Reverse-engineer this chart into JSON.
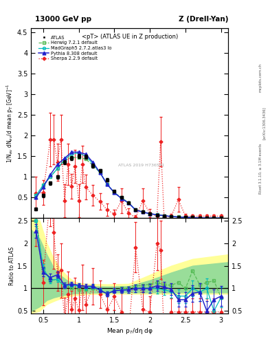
{
  "title_top_left": "13000 GeV pp",
  "title_top_right": "Z (Drell-Yan)",
  "panel_title": "<pT> (ATLAS UE in Z production)",
  "ylabel_main": "1/N$_{ev}$ dN$_{ev}$/d mean p$_{T}$ [GeV]$^{-1}$",
  "ylabel_ratio": "Ratio to ATLAS",
  "xlabel": "Mean p$_{T}$/dη dφ",
  "right_text_top": "mcplots.cern.ch",
  "right_text_mid": "[arXiv:1306.3436]",
  "right_text_bot": "Rivet 3.1.10, ≥ 3.1M events",
  "ylim_main": [
    0,
    4.6
  ],
  "ylim_ratio": [
    0.45,
    2.55
  ],
  "xlim": [
    0.33,
    3.1
  ],
  "atlas_x": [
    0.4,
    0.5,
    0.6,
    0.7,
    0.8,
    0.9,
    1.0,
    1.1,
    1.2,
    1.3,
    1.4,
    1.5,
    1.6,
    1.7,
    1.8,
    1.9,
    2.0,
    2.1,
    2.2,
    2.3,
    2.4,
    2.5,
    2.6,
    2.7,
    2.8,
    2.9,
    3.0
  ],
  "atlas_y": [
    0.22,
    0.55,
    0.85,
    1.0,
    1.35,
    1.45,
    1.5,
    1.48,
    1.28,
    1.15,
    0.93,
    0.65,
    0.5,
    0.38,
    0.2,
    0.15,
    0.11,
    0.08,
    0.06,
    0.045,
    0.03,
    0.025,
    0.018,
    0.012,
    0.008,
    0.006,
    0.005
  ],
  "atlas_yerr": [
    0.03,
    0.04,
    0.04,
    0.04,
    0.05,
    0.05,
    0.05,
    0.05,
    0.05,
    0.04,
    0.04,
    0.03,
    0.03,
    0.02,
    0.02,
    0.015,
    0.01,
    0.008,
    0.006,
    0.005,
    0.004,
    0.003,
    0.002,
    0.002,
    0.001,
    0.001,
    0.001
  ],
  "herwig_x": [
    0.4,
    0.5,
    0.6,
    0.7,
    0.8,
    0.9,
    1.0,
    1.1,
    1.2,
    1.3,
    1.4,
    1.5,
    1.6,
    1.7,
    1.8,
    1.9,
    2.0,
    2.1,
    2.2,
    2.3,
    2.4,
    2.5,
    2.6,
    2.7,
    2.8,
    2.9,
    3.0
  ],
  "herwig_y": [
    0.55,
    0.8,
    1.0,
    1.2,
    1.4,
    1.47,
    1.47,
    1.43,
    1.28,
    1.1,
    0.82,
    0.62,
    0.5,
    0.38,
    0.2,
    0.16,
    0.11,
    0.09,
    0.065,
    0.048,
    0.034,
    0.025,
    0.018,
    0.013,
    0.009,
    0.007,
    0.005
  ],
  "madgraph_x": [
    0.4,
    0.5,
    0.6,
    0.7,
    0.8,
    0.9,
    1.0,
    1.1,
    1.2,
    1.3,
    1.4,
    1.5,
    1.6,
    1.7,
    1.8,
    1.9,
    2.0,
    2.1,
    2.2,
    2.3,
    2.4,
    2.5,
    2.6,
    2.7,
    2.8,
    2.9,
    3.0
  ],
  "madgraph_y": [
    0.55,
    0.8,
    1.0,
    1.2,
    1.42,
    1.55,
    1.58,
    1.5,
    1.32,
    1.1,
    0.82,
    0.62,
    0.48,
    0.37,
    0.2,
    0.15,
    0.11,
    0.08,
    0.058,
    0.042,
    0.03,
    0.022,
    0.016,
    0.011,
    0.008,
    0.006,
    0.005
  ],
  "pythia_x": [
    0.4,
    0.5,
    0.6,
    0.7,
    0.8,
    0.9,
    1.0,
    1.1,
    1.2,
    1.3,
    1.4,
    1.5,
    1.6,
    1.7,
    1.8,
    1.9,
    2.0,
    2.1,
    2.2,
    2.3,
    2.4,
    2.5,
    2.6,
    2.7,
    2.8,
    2.9,
    3.0
  ],
  "pythia_y": [
    0.5,
    0.75,
    1.05,
    1.3,
    1.45,
    1.6,
    1.6,
    1.55,
    1.35,
    1.1,
    0.82,
    0.62,
    0.48,
    0.37,
    0.2,
    0.15,
    0.11,
    0.085,
    0.062,
    0.044,
    0.03,
    0.022,
    0.016,
    0.011,
    0.008,
    0.006,
    0.005
  ],
  "sherpa_x": [
    0.4,
    0.5,
    0.6,
    0.65,
    0.7,
    0.75,
    0.8,
    0.85,
    0.9,
    0.95,
    1.0,
    1.05,
    1.1,
    1.2,
    1.3,
    1.4,
    1.5,
    1.6,
    1.7,
    1.8,
    1.9,
    2.0,
    2.1,
    2.15,
    2.2,
    2.3,
    2.4,
    2.5,
    2.6,
    2.7,
    2.8,
    2.9,
    3.0
  ],
  "sherpa_y": [
    0.6,
    0.62,
    1.9,
    1.9,
    1.35,
    1.9,
    0.42,
    1.3,
    0.78,
    1.25,
    0.42,
    1.3,
    0.75,
    0.55,
    0.4,
    0.2,
    0.1,
    0.42,
    0.12,
    0.02,
    0.42,
    0.12,
    0.05,
    1.85,
    0.02,
    0.05,
    0.45,
    0.05,
    0.05,
    0.05,
    0.05,
    0.05,
    0.05
  ],
  "sherpa_yerr": [
    0.4,
    0.3,
    0.65,
    0.6,
    0.45,
    0.6,
    0.4,
    0.5,
    0.3,
    0.4,
    0.4,
    0.45,
    0.3,
    0.25,
    0.2,
    0.15,
    0.1,
    0.3,
    0.12,
    0.05,
    0.3,
    0.1,
    0.05,
    0.6,
    0.03,
    0.05,
    0.3,
    0.05,
    0.04,
    0.04,
    0.04,
    0.04,
    0.04
  ],
  "herwig_color": "#55bb55",
  "madgraph_color": "#00bbbb",
  "pythia_color": "#2222cc",
  "sherpa_color": "#ee2222",
  "atlas_color": "#000000",
  "band_yellow_x": [
    0.33,
    0.45,
    0.55,
    0.65,
    0.75,
    0.85,
    0.95,
    1.1,
    1.4,
    1.7,
    2.0,
    2.3,
    2.6,
    3.1
  ],
  "band_yellow_low": [
    0.45,
    0.5,
    0.65,
    0.72,
    0.78,
    0.82,
    0.85,
    0.87,
    0.88,
    0.88,
    0.88,
    0.88,
    0.88,
    0.88
  ],
  "band_yellow_high": [
    2.55,
    2.5,
    2.0,
    1.65,
    1.42,
    1.25,
    1.14,
    1.1,
    1.09,
    1.1,
    1.3,
    1.5,
    1.65,
    1.75
  ],
  "band_green_x": [
    0.33,
    0.45,
    0.55,
    0.65,
    0.75,
    0.85,
    0.95,
    1.1,
    1.4,
    1.7,
    2.0,
    2.3,
    2.6,
    3.1
  ],
  "band_green_low": [
    0.5,
    0.6,
    0.74,
    0.8,
    0.84,
    0.87,
    0.89,
    0.9,
    0.91,
    0.91,
    0.91,
    0.91,
    0.91,
    0.91
  ],
  "band_green_high": [
    2.3,
    2.1,
    1.75,
    1.45,
    1.28,
    1.16,
    1.08,
    1.05,
    1.04,
    1.05,
    1.18,
    1.35,
    1.5,
    1.58
  ],
  "herwig_ratio": [
    2.5,
    1.45,
    1.18,
    1.2,
    1.04,
    1.01,
    0.98,
    0.97,
    1.0,
    0.96,
    0.88,
    0.95,
    1.0,
    1.0,
    1.05,
    1.07,
    1.09,
    1.13,
    1.08,
    1.07,
    1.13,
    1.0,
    1.39,
    1.08,
    1.13,
    1.17,
    0.8
  ],
  "madgraph_ratio": [
    2.5,
    1.45,
    1.18,
    1.2,
    1.05,
    1.07,
    1.05,
    1.01,
    1.03,
    0.96,
    0.88,
    0.95,
    0.96,
    0.97,
    1.0,
    1.0,
    1.0,
    1.0,
    0.97,
    0.93,
    0.83,
    0.83,
    1.0,
    0.92,
    1.0,
    0.5,
    0.8
  ],
  "pythia_ratio": [
    2.27,
    1.36,
    1.24,
    1.3,
    1.07,
    1.1,
    1.07,
    1.05,
    1.05,
    0.96,
    0.88,
    0.95,
    0.96,
    0.97,
    1.0,
    1.0,
    1.0,
    1.06,
    1.03,
    0.98,
    0.75,
    0.75,
    0.89,
    0.92,
    0.5,
    0.75,
    0.83
  ],
  "sherpa_ratio": [
    2.73,
    1.13,
    3.17,
    2.24,
    1.35,
    1.4,
    0.29,
    0.87,
    0.54,
    0.78,
    0.52,
    1.02,
    0.65,
    1.05,
    0.87,
    0.53,
    0.82,
    0.48,
    0.0,
    1.91,
    0.53,
    0.48,
    2.0,
    1.85,
    0.0,
    0.48,
    0.48,
    0.48,
    0.48,
    0.48,
    0.48,
    0.48,
    0.48
  ],
  "sherpa_ratio_yerr": [
    0.8,
    0.5,
    0.8,
    0.8,
    0.4,
    0.6,
    0.5,
    0.5,
    0.4,
    0.45,
    0.55,
    0.5,
    0.4,
    0.4,
    0.3,
    0.3,
    0.3,
    0.45,
    0.3,
    0.55,
    0.4,
    0.35,
    0.6,
    0.65,
    0.3,
    0.3,
    0.3,
    0.3,
    0.3,
    0.3,
    0.3,
    0.3,
    0.3
  ],
  "pythia_ratio_yerr": [
    0.15,
    0.1,
    0.08,
    0.07,
    0.06,
    0.05,
    0.05,
    0.05,
    0.05,
    0.05,
    0.05,
    0.05,
    0.06,
    0.07,
    0.08,
    0.09,
    0.1,
    0.11,
    0.12,
    0.13,
    0.15,
    0.16,
    0.18,
    0.2,
    0.22,
    0.22,
    0.22
  ],
  "madgraph_ratio_yerr": [
    0.12,
    0.09,
    0.07,
    0.06,
    0.05,
    0.05,
    0.05,
    0.05,
    0.05,
    0.05,
    0.05,
    0.05,
    0.06,
    0.07,
    0.08,
    0.09,
    0.1,
    0.11,
    0.12,
    0.13,
    0.15,
    0.16,
    0.18,
    0.2,
    0.22,
    0.22,
    0.22
  ],
  "watermark": "ATLAS 2019 H736591"
}
